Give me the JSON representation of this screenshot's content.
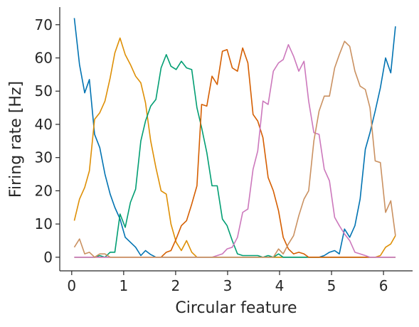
{
  "chart_data": {
    "type": "line",
    "x_label": "Circular feature",
    "y_label": "Firing rate [Hz]",
    "x": [
      0.05,
      0.15,
      0.25,
      0.34,
      0.44,
      0.54,
      0.64,
      0.74,
      0.83,
      0.93,
      1.03,
      1.13,
      1.23,
      1.33,
      1.42,
      1.52,
      1.62,
      1.72,
      1.82,
      1.91,
      2.01,
      2.11,
      2.21,
      2.31,
      2.41,
      2.5,
      2.6,
      2.7,
      2.8,
      2.9,
      2.99,
      3.09,
      3.19,
      3.29,
      3.39,
      3.49,
      3.58,
      3.68,
      3.78,
      3.88,
      3.98,
      4.07,
      4.17,
      4.27,
      4.37,
      4.47,
      4.56,
      4.66,
      4.76,
      4.86,
      4.96,
      5.06,
      5.15,
      5.25,
      5.35,
      5.45,
      5.55,
      5.65,
      5.74,
      5.84,
      5.94,
      6.04,
      6.14,
      6.23
    ],
    "series": [
      {
        "color": "#0173b2",
        "values": [
          72,
          58,
          49.5,
          53.5,
          37,
          33,
          25,
          19,
          15,
          11.5,
          6,
          4.5,
          3,
          0.5,
          2,
          0.8,
          0,
          0,
          0,
          0,
          0,
          0,
          0,
          0,
          0,
          0,
          0,
          0,
          0,
          0,
          0,
          0,
          0,
          0,
          0,
          0,
          0,
          0,
          0,
          0,
          0,
          0,
          0,
          0,
          0,
          0,
          0,
          0,
          0,
          0.5,
          1.5,
          2,
          1,
          8.5,
          6,
          9.5,
          17.5,
          32.5,
          37.5,
          44,
          51,
          60,
          55.5,
          69.5
        ]
      },
      {
        "color": "#de8f05",
        "values": [
          11,
          17.5,
          21,
          26,
          41.5,
          43.5,
          47,
          54,
          61.5,
          66,
          61,
          58,
          54.5,
          52.5,
          46.5,
          35,
          27,
          20,
          19,
          10,
          4.5,
          2,
          5,
          1.5,
          0,
          0,
          0,
          0,
          0,
          0,
          0,
          0,
          0,
          0,
          0,
          0,
          0,
          0,
          0,
          0,
          0,
          0,
          0,
          0,
          0,
          0,
          0,
          0,
          0,
          0,
          0,
          0,
          0,
          0,
          0,
          0,
          0,
          0,
          0,
          0,
          0.5,
          3,
          4,
          6.5
        ]
      },
      {
        "color": "#029e73",
        "values": [
          0,
          0,
          0,
          0,
          0,
          0.5,
          0,
          1.5,
          1.5,
          13,
          9,
          16.5,
          20.5,
          35,
          41,
          45.5,
          47.5,
          57,
          61,
          57.5,
          56.5,
          59,
          57,
          56.5,
          45,
          39,
          31.5,
          21.5,
          21.5,
          11.5,
          9.5,
          5,
          1,
          0.5,
          0.5,
          0.5,
          0.5,
          0,
          0.5,
          0,
          1,
          0,
          0,
          0,
          0,
          0,
          0,
          0,
          0,
          0,
          0,
          0,
          0,
          0,
          0,
          0,
          0,
          0,
          0,
          0,
          0,
          0,
          0,
          0
        ]
      },
      {
        "color": "#d55e00",
        "values": [
          0,
          0,
          0,
          0,
          0,
          0,
          0,
          0,
          0,
          0,
          0,
          0,
          0,
          0,
          0,
          0,
          0,
          0,
          1.5,
          2,
          5.5,
          9.5,
          11,
          16,
          21.5,
          46,
          45.5,
          54.5,
          52,
          62,
          62.5,
          57,
          56,
          63,
          58.5,
          43,
          41,
          36,
          24,
          20,
          14,
          6,
          2.5,
          1,
          1.5,
          1,
          0,
          0,
          0,
          0,
          0,
          0,
          0,
          0,
          0,
          0,
          0,
          0,
          0,
          0,
          0,
          0,
          0,
          0
        ]
      },
      {
        "color": "#cc78bc",
        "values": [
          0,
          0,
          0,
          0,
          0,
          0,
          0,
          0,
          0,
          0,
          0,
          0,
          0,
          0,
          0,
          0,
          0,
          0,
          0,
          0,
          0,
          0,
          0,
          0,
          0,
          0,
          0,
          0,
          0.5,
          1,
          2.5,
          3,
          6,
          13.5,
          14.5,
          26.5,
          32,
          47,
          46,
          56,
          58.5,
          59.5,
          64,
          60.5,
          56,
          59,
          47,
          37.5,
          37,
          26.5,
          23,
          12,
          9.5,
          7,
          5,
          1.5,
          1,
          0.5,
          0,
          0,
          0,
          0,
          0,
          0
        ]
      },
      {
        "color": "#ca9161",
        "values": [
          3,
          5.5,
          1,
          1.5,
          0,
          1,
          1,
          0,
          0,
          0,
          0,
          0,
          0,
          0,
          0,
          0,
          0,
          0,
          0,
          0,
          0,
          0,
          0,
          0,
          0,
          0,
          0,
          0,
          0,
          0,
          0,
          0,
          0,
          0,
          0,
          0,
          0,
          0,
          0,
          0,
          2.5,
          1,
          4,
          6.5,
          12.5,
          17.5,
          20,
          35,
          44,
          48.5,
          48.5,
          57,
          61,
          65,
          63.5,
          56,
          51.5,
          50.5,
          45,
          29,
          28.5,
          13.5,
          17,
          6.5
        ]
      }
    ],
    "xlim": [
      -0.23,
      6.56
    ],
    "xticks": [
      0,
      1,
      2,
      3,
      4,
      5,
      6
    ],
    "ylim": [
      -4.1,
      75.3
    ],
    "yticks": [
      0,
      10,
      20,
      30,
      40,
      50,
      60,
      70
    ]
  }
}
